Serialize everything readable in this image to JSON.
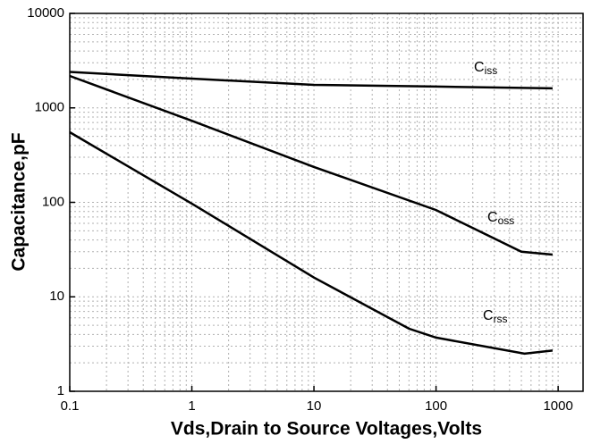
{
  "chart_data": {
    "type": "line",
    "x_label": "Vds,Drain to Source Voltages,Volts",
    "y_label": "Capacitance,pF",
    "log_x": true,
    "log_y": true,
    "grid": true,
    "minor_grid": true,
    "xlim": [
      0.1,
      1600
    ],
    "xticks": [
      0.1,
      1,
      10,
      100,
      1000
    ],
    "ylim": [
      1,
      10000
    ],
    "yticks": [
      1,
      10,
      100,
      1000,
      10000
    ],
    "series": [
      {
        "name": [
          "C",
          "iss"
        ],
        "color": "#000000",
        "x": [
          0.1,
          1,
          10,
          100,
          900
        ],
        "values": [
          2400,
          2040,
          1750,
          1680,
          1610
        ]
      },
      {
        "name": [
          "C",
          "oss"
        ],
        "color": "#000000",
        "x": [
          0.1,
          1,
          10,
          100,
          500,
          900
        ],
        "values": [
          2180,
          730,
          237,
          83,
          30,
          28
        ]
      },
      {
        "name": [
          "C",
          "rss"
        ],
        "color": "#000000",
        "x": [
          0.1,
          1,
          10,
          60,
          100,
          530,
          900
        ],
        "values": [
          552,
          97,
          16,
          4.6,
          3.7,
          2.5,
          2.7
        ]
      }
    ]
  }
}
